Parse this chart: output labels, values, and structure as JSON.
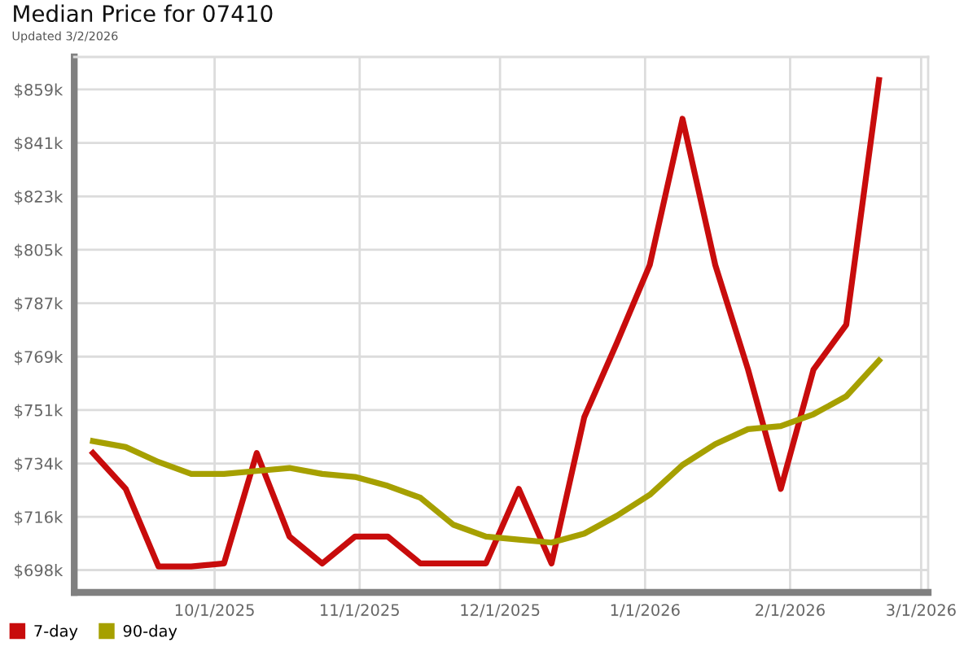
{
  "chart_data": {
    "type": "line",
    "title": "Median Price for 07410",
    "subtitle": "Updated 3/2/2026",
    "x": [
      "2025-09-05",
      "2025-09-12",
      "2025-09-19",
      "2025-09-26",
      "2025-10-03",
      "2025-10-10",
      "2025-10-17",
      "2025-10-24",
      "2025-10-31",
      "2025-11-07",
      "2025-11-14",
      "2025-11-21",
      "2025-11-28",
      "2025-12-05",
      "2025-12-12",
      "2025-12-19",
      "2025-12-26",
      "2026-01-02",
      "2026-01-09",
      "2026-01-16",
      "2026-01-23",
      "2026-01-30",
      "2026-02-06",
      "2026-02-13",
      "2026-02-20"
    ],
    "series": [
      {
        "name": "7-day",
        "color": "#c80c0c",
        "values": [
          737,
          725,
          699,
          699,
          700,
          737,
          709,
          700,
          709,
          709,
          700,
          700,
          700,
          725,
          700,
          749,
          774,
          800,
          849,
          800,
          765,
          725,
          765,
          780,
          862
        ]
      },
      {
        "name": "90-day",
        "color": "#a6a000",
        "values": [
          741,
          739,
          734,
          730,
          730,
          731,
          732,
          730,
          729,
          726,
          722,
          713,
          709,
          708,
          707,
          710,
          716,
          723,
          733,
          740,
          745,
          746,
          750,
          756,
          768
        ]
      }
    ],
    "xlim": [
      "2025-09-01",
      "2026-03-02T12:00"
    ],
    "xticks": [
      {
        "value": "2025-10-01",
        "label": "10/1/2025"
      },
      {
        "value": "2025-11-01",
        "label": "11/1/2025"
      },
      {
        "value": "2025-12-01",
        "label": "12/1/2025"
      },
      {
        "value": "2026-01-01",
        "label": "1/1/2026"
      },
      {
        "value": "2026-02-01",
        "label": "2/1/2026"
      },
      {
        "value": "2026-03-01",
        "label": "3/1/2026"
      }
    ],
    "ylim": [
      690.3,
      869.7
    ],
    "yticks": [
      {
        "value": 697.8,
        "label": "$698k"
      },
      {
        "value": 715.6,
        "label": "$716k"
      },
      {
        "value": 733.5,
        "label": "$734k"
      },
      {
        "value": 751.4,
        "label": "$751k"
      },
      {
        "value": 769.3,
        "label": "$769k"
      },
      {
        "value": 787.2,
        "label": "$787k"
      },
      {
        "value": 805.1,
        "label": "$805k"
      },
      {
        "value": 823.0,
        "label": "$823k"
      },
      {
        "value": 840.9,
        "label": "$841k"
      },
      {
        "value": 858.8,
        "label": "$859k"
      }
    ],
    "grid": true,
    "legend": "bottom left",
    "line_style": "solid"
  }
}
